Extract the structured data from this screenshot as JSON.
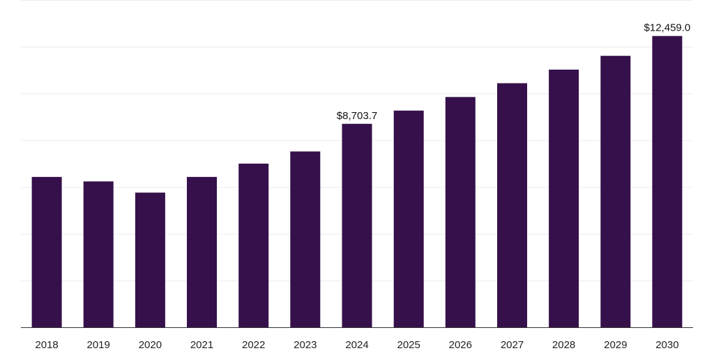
{
  "chart_data": {
    "type": "bar",
    "title": "",
    "xlabel": "",
    "ylabel": "",
    "categories": [
      "2018",
      "2019",
      "2020",
      "2021",
      "2022",
      "2023",
      "2024",
      "2025",
      "2026",
      "2027",
      "2028",
      "2029",
      "2030"
    ],
    "values": [
      6430,
      6240,
      5760,
      6430,
      7000,
      7520,
      8703.7,
      9270,
      9850,
      10440,
      11020,
      11610,
      12459.0
    ],
    "data_labels": [
      {
        "category": "2024",
        "text": "$8,703.7"
      },
      {
        "category": "2030",
        "text": "$12,459.0"
      }
    ],
    "ylim": [
      0,
      14000
    ],
    "gridlines": [
      0,
      2000,
      4000,
      6000,
      8000,
      10000,
      12000,
      14000
    ],
    "grid": true,
    "legend": "none",
    "colors": {
      "bar": "#36104a",
      "grid": "#ececec",
      "axis": "#333333",
      "text": "#222222"
    }
  }
}
